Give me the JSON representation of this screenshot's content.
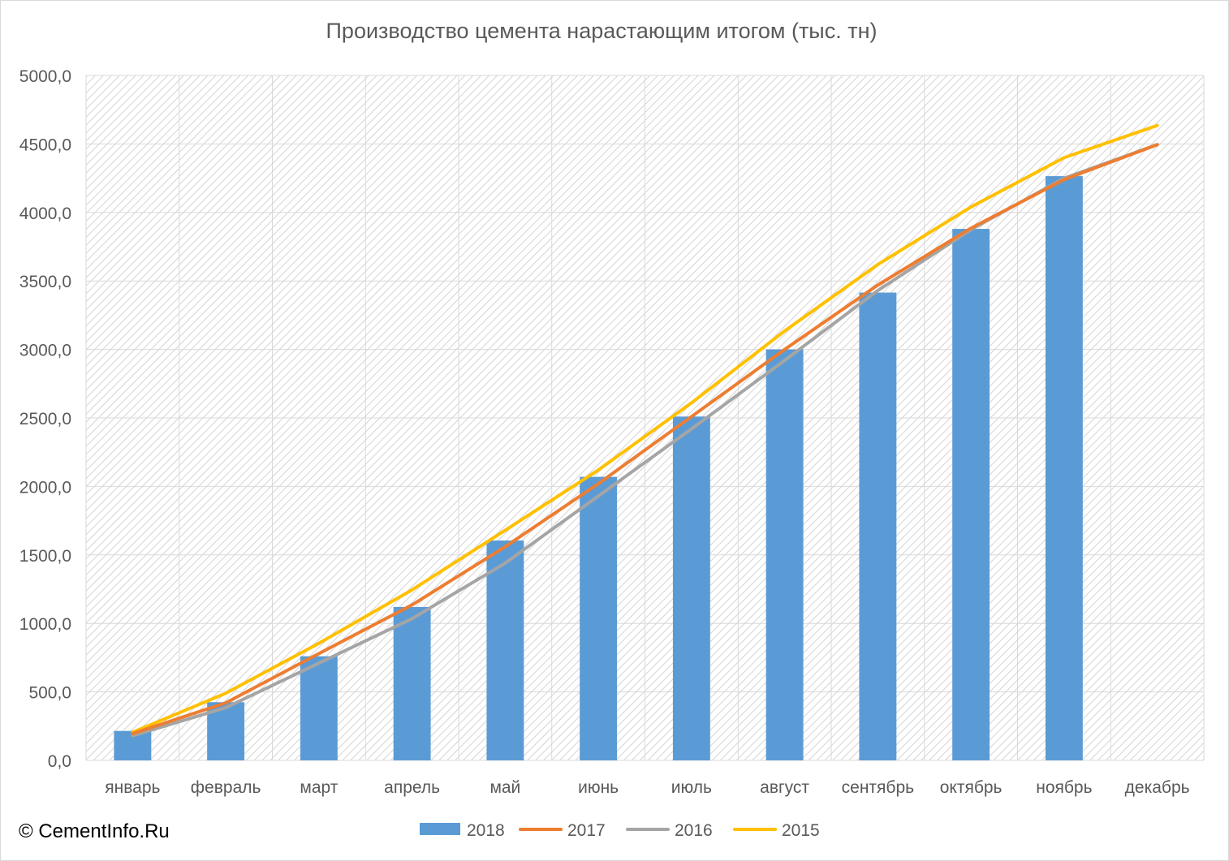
{
  "chart_data": {
    "type": "bar",
    "title": "Производство цемента нарастающим итогом (тыс. тн)",
    "categories": [
      "январь",
      "февраль",
      "март",
      "апрель",
      "май",
      "июнь",
      "июль",
      "август",
      "сентябрь",
      "октябрь",
      "ноябрь",
      "декабрь"
    ],
    "ylim": [
      0,
      5000
    ],
    "yticks": [
      "0,0",
      "500,0",
      "1000,0",
      "1500,0",
      "2000,0",
      "2500,0",
      "3000,0",
      "3500,0",
      "4000,0",
      "4500,0",
      "5000,0"
    ],
    "grid": true,
    "legend_position": "bottom",
    "series": [
      {
        "name": "2018",
        "type": "bar",
        "color": "#5b9bd5",
        "values": [
          215,
          425,
          760,
          1120,
          1605,
          2070,
          2510,
          3000,
          3415,
          3880,
          4265,
          null
        ]
      },
      {
        "name": "2017",
        "type": "line",
        "color": "#ed7d31",
        "values": [
          195,
          420,
          780,
          1135,
          1560,
          2020,
          2510,
          3000,
          3470,
          3885,
          4240,
          4495
        ]
      },
      {
        "name": "2016",
        "type": "line",
        "color": "#a5a5a5",
        "values": [
          180,
          385,
          710,
          1035,
          1440,
          1930,
          2420,
          2920,
          3430,
          3875,
          4250,
          4495
        ]
      },
      {
        "name": "2015",
        "type": "line",
        "color": "#ffc000",
        "values": [
          205,
          490,
          855,
          1245,
          1680,
          2120,
          2610,
          3135,
          3620,
          4040,
          4400,
          4635
        ]
      }
    ]
  },
  "footer": {
    "copyright": "© CementInfo.Ru"
  }
}
